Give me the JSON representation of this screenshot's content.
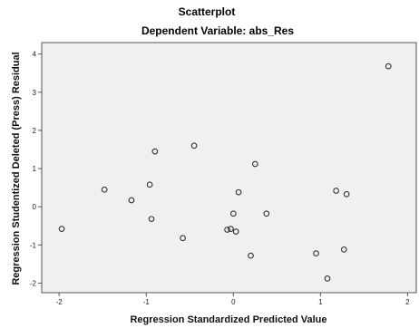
{
  "chart_data": {
    "type": "scatter",
    "title": "Scatterplot",
    "subtitle": "Dependent Variable: abs_Res",
    "xlabel": "Regression Standardized Predicted Value",
    "ylabel": "Regression Studentized Deleted (Press) Residual",
    "xlim": [
      -2.2,
      2.1
    ],
    "ylim": [
      -2.25,
      4.3
    ],
    "xticks": [
      -2,
      -1,
      0,
      1,
      2
    ],
    "yticks": [
      -2,
      -1,
      0,
      1,
      2,
      3,
      4
    ],
    "grid": false,
    "x": [
      -1.97,
      -1.48,
      -1.17,
      -0.96,
      -0.94,
      -0.9,
      -0.58,
      -0.45,
      -0.07,
      -0.03,
      0.0,
      0.03,
      0.06,
      0.2,
      0.25,
      0.38,
      0.95,
      1.08,
      1.18,
      1.27,
      1.3,
      1.78
    ],
    "y": [
      -0.58,
      0.45,
      0.17,
      0.58,
      -0.32,
      1.45,
      -0.82,
      1.6,
      -0.6,
      -0.58,
      -0.18,
      -0.65,
      0.38,
      -1.28,
      1.12,
      -0.18,
      -1.22,
      -1.88,
      0.42,
      -1.12,
      0.33,
      3.68
    ]
  },
  "colors": {
    "plot_background": "#f0f0f0",
    "marker_stroke": "#333333"
  }
}
